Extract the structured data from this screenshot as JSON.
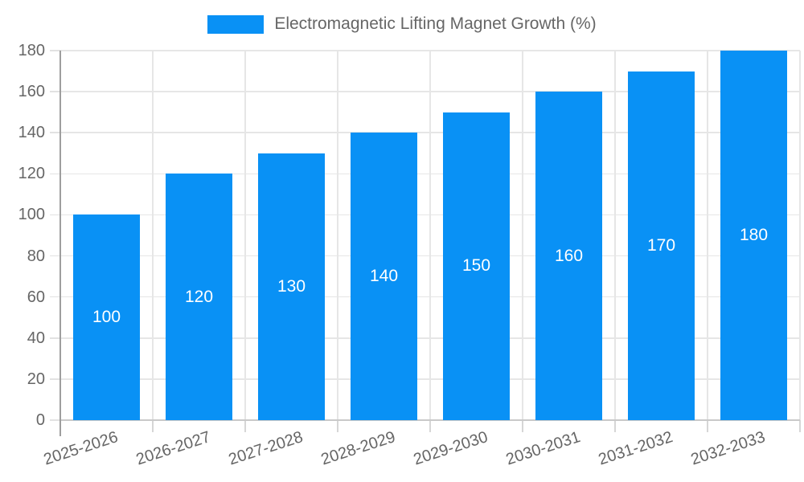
{
  "chart_data": {
    "type": "bar",
    "legend": "Electromagnetic Lifting Magnet Growth (%)",
    "categories": [
      "2025-2026",
      "2026-2027",
      "2027-2028",
      "2028-2029",
      "2029-2030",
      "2030-2031",
      "2031-2032",
      "2032-2033"
    ],
    "values": [
      100,
      120,
      130,
      140,
      150,
      160,
      170,
      180
    ],
    "title": "",
    "xlabel": "",
    "ylabel": "",
    "ylim": [
      0,
      180
    ],
    "ytick_step": 20,
    "yticks": [
      0,
      20,
      40,
      60,
      80,
      100,
      120,
      140,
      160,
      180
    ],
    "grid": true,
    "legend_position": "top-center",
    "value_labels": "inside-middle",
    "bar_color": "#0991f5",
    "value_label_color": "#ffffff",
    "axis_text_color": "#666666",
    "gridline_color": "#e6e6e6",
    "y_axis_line_color": "#9e9e9e",
    "x_axis_line_color": "#c9c9c9"
  }
}
